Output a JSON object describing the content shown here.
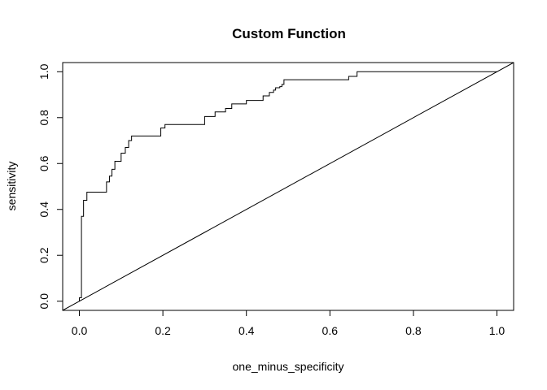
{
  "chart_data": {
    "type": "line",
    "title": "Custom Function",
    "xlabel": "one_minus_specificity",
    "ylabel": "sensitivity",
    "xlim": [
      -0.04,
      1.04
    ],
    "ylim": [
      -0.04,
      1.04
    ],
    "x_ticks": [
      0.0,
      0.2,
      0.4,
      0.6,
      0.8,
      1.0
    ],
    "x_tick_labels": [
      "0.0",
      "0.2",
      "0.4",
      "0.6",
      "0.8",
      "1.0"
    ],
    "y_ticks": [
      0.0,
      0.2,
      0.4,
      0.6,
      0.8,
      1.0
    ],
    "y_tick_labels": [
      "0.0",
      "0.2",
      "0.4",
      "0.6",
      "0.8",
      "1.0"
    ],
    "grid": false,
    "series": [
      {
        "style": "step",
        "color": "#000000",
        "x": [
          0.0,
          0.0,
          0.005,
          0.005,
          0.01,
          0.01,
          0.018,
          0.018,
          0.025,
          0.025,
          0.065,
          0.065,
          0.072,
          0.072,
          0.078,
          0.078,
          0.085,
          0.085,
          0.1,
          0.1,
          0.11,
          0.11,
          0.118,
          0.118,
          0.125,
          0.125,
          0.195,
          0.195,
          0.205,
          0.205,
          0.3,
          0.3,
          0.325,
          0.325,
          0.35,
          0.35,
          0.365,
          0.365,
          0.4,
          0.4,
          0.44,
          0.44,
          0.455,
          0.455,
          0.465,
          0.465,
          0.47,
          0.47,
          0.48,
          0.48,
          0.485,
          0.485,
          0.49,
          0.49,
          0.645,
          0.645,
          0.665,
          0.665,
          0.745,
          0.745,
          1.0
        ],
        "y": [
          0.0,
          0.015,
          0.015,
          0.37,
          0.37,
          0.44,
          0.44,
          0.475,
          0.475,
          0.475,
          0.475,
          0.52,
          0.52,
          0.545,
          0.545,
          0.575,
          0.575,
          0.61,
          0.61,
          0.645,
          0.645,
          0.67,
          0.67,
          0.7,
          0.7,
          0.72,
          0.72,
          0.755,
          0.755,
          0.77,
          0.77,
          0.805,
          0.805,
          0.825,
          0.825,
          0.84,
          0.84,
          0.86,
          0.86,
          0.875,
          0.875,
          0.895,
          0.895,
          0.91,
          0.91,
          0.92,
          0.92,
          0.93,
          0.93,
          0.935,
          0.935,
          0.945,
          0.945,
          0.965,
          0.965,
          0.98,
          0.98,
          1.0,
          1.0,
          1.0,
          1.0
        ]
      },
      {
        "style": "abline",
        "color": "#000000",
        "intercept": 0,
        "slope": 1
      }
    ]
  }
}
